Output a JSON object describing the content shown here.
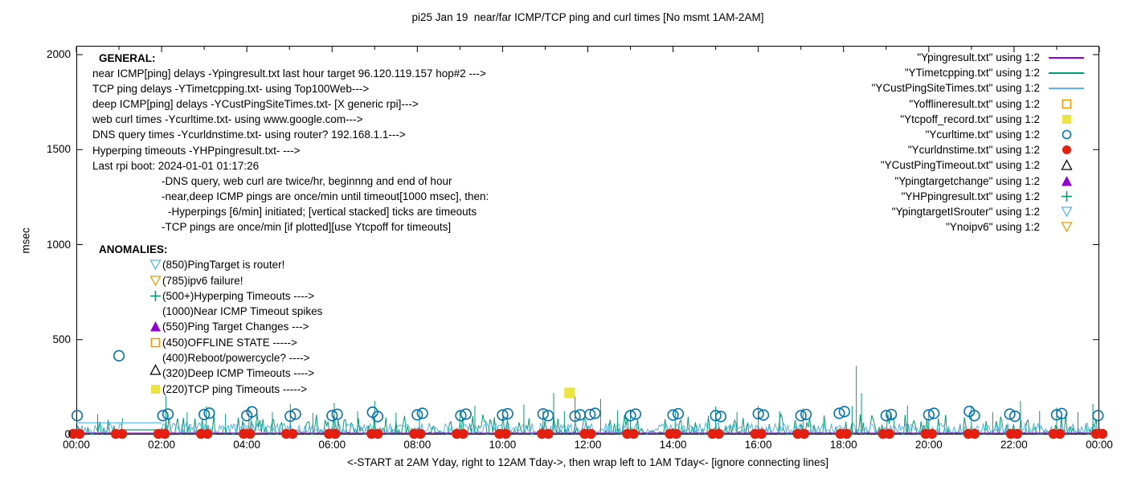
{
  "title": "pi25 Jan 19  near/far ICMP/TCP ping and curl times [No msmt 1AM-2AM]",
  "axes": {
    "y_label": "msec",
    "x_label": "<-START at 2AM Yday, right to 12AM Tday->, then wrap left to 1AM Tday<- [ignore connecting lines]"
  },
  "general": {
    "heading": "GENERAL:",
    "lines": [
      {
        "t": "near ICMP[ping] delays -Ypingresult.txt last hour target 96.120.119.157 hop#2 --->",
        "in": 0
      },
      {
        "t": "TCP ping delays -YTimetcpping.txt- using Top100Web--->",
        "in": 0
      },
      {
        "t": "deep ICMP[ping] delays -YCustPingSiteTimes.txt- [X generic rpi]--->",
        "in": 0
      },
      {
        "t": "web curl times -Ycurltime.txt- using www.google.com--->",
        "in": 0
      },
      {
        "t": "DNS query times -Ycurldnstime.txt- using router? 192.168.1.1--->",
        "in": 0
      },
      {
        "t": "Hyperping timeouts -YHPpingresult.txt- --->",
        "in": 0
      },
      {
        "t": "Last rpi boot: 2024-01-01 01:17:26",
        "in": 0
      },
      {
        "t": "-DNS query, web curl are twice/hr, beginnng and end of hour",
        "in": 1
      },
      {
        "t": "-near,deep ICMP pings are once/min until timeout[1000 msec], then:",
        "in": 1
      },
      {
        "t": "-Hyperpings [6/min] initiated; [vertical stacked] ticks are timeouts",
        "in": 2
      },
      {
        "t": "-TCP pings are once/min [if plotted][use Ytcpoff for timeouts]",
        "in": 1
      }
    ]
  },
  "anomalies": {
    "heading": "ANOMALIES:",
    "items": [
      {
        "marker": "triangle-down-open",
        "color": "#56b4e9",
        "t": "(850)PingTarget is router!"
      },
      {
        "marker": "triangle-down-open",
        "color": "#e69f00",
        "t": "(785)ipv6 failure!"
      },
      {
        "marker": "plus",
        "color": "#009e73",
        "t": "(500+)Hyperping Timeouts ---->"
      },
      {
        "marker": "none",
        "color": "",
        "t": "(1000)Near ICMP Timeout spikes"
      },
      {
        "marker": "triangle-filled",
        "color": "#9400d3",
        "t": "(550)Ping Target Changes --->"
      },
      {
        "marker": "square-open",
        "color": "#e69f00",
        "t": "(450)OFFLINE STATE ----->"
      },
      {
        "marker": "none",
        "color": "",
        "t": "(400)Reboot/powercycle? ---->"
      },
      {
        "marker": "triangle-open",
        "color": "#000000",
        "raised": true,
        "t": "(320)Deep ICMP Timeouts ---->"
      },
      {
        "marker": "square-filled",
        "color": "#ede53f",
        "t": "(220)TCP ping Timeouts ----->"
      }
    ]
  },
  "chart_data": {
    "type": "line",
    "title": "pi25 Jan 19  near/far ICMP/TCP ping and curl times [No msmt 1AM-2AM]",
    "xlabel": "<-START at 2AM Yday, right to 12AM Tday->, then wrap left to 1AM Tday<- [ignore connecting lines]",
    "ylabel": "msec",
    "xlim_hours": [
      0,
      24
    ],
    "ylim": [
      0,
      2045
    ],
    "grid": false,
    "legend_position": "top-right",
    "x_tick_labels": [
      "00:00",
      "02:00",
      "04:00",
      "06:00",
      "08:00",
      "10:00",
      "12:00",
      "14:00",
      "16:00",
      "18:00",
      "20:00",
      "22:00",
      "00:00"
    ],
    "x_tick_hours": [
      0,
      2,
      4,
      6,
      8,
      10,
      12,
      14,
      16,
      18,
      20,
      22,
      24
    ],
    "y_tick_values": [
      0,
      500,
      1000,
      1500,
      2000
    ],
    "measurement_gap_hours": [
      1.1,
      2.0
    ],
    "series": [
      {
        "name": "Ypingresult.txt",
        "legend_label": "\"Ypingresult.txt\" using 1:2",
        "legend_marker": "line",
        "color": "#9400d3",
        "kind": "flat-line",
        "value": 8,
        "note": "near ICMP ping delay, ~constant few msec across full day"
      },
      {
        "name": "YTimetcpping.txt",
        "legend_label": "\"YTimetcpping.txt\" using 1:2",
        "legend_marker": "line",
        "color": "#009e73",
        "kind": "noise",
        "noise_range": [
          0,
          110
        ],
        "seed": 42,
        "flat": {
          "from": 1.15,
          "to": 2.0,
          "value": 25
        },
        "spikes": [
          [
            0.5,
            108
          ],
          [
            2.1,
            205
          ],
          [
            2.6,
            118
          ],
          [
            3.05,
            150
          ],
          [
            3.5,
            110
          ],
          [
            4.05,
            148
          ],
          [
            4.6,
            118
          ],
          [
            5.02,
            162
          ],
          [
            5.55,
            114
          ],
          [
            6.05,
            168
          ],
          [
            6.6,
            124
          ],
          [
            7.0,
            178
          ],
          [
            7.5,
            115
          ],
          [
            8.05,
            134
          ],
          [
            9.0,
            124
          ],
          [
            9.35,
            152
          ],
          [
            10.5,
            158
          ],
          [
            10.95,
            130
          ],
          [
            11.2,
            218
          ],
          [
            11.45,
            124
          ],
          [
            11.7,
            200
          ],
          [
            12.3,
            188
          ],
          [
            12.7,
            128
          ],
          [
            13.0,
            132
          ],
          [
            14.05,
            124
          ],
          [
            15.0,
            148
          ],
          [
            15.5,
            118
          ],
          [
            16.0,
            152
          ],
          [
            16.5,
            124
          ],
          [
            17.05,
            138
          ],
          [
            18.2,
            150
          ],
          [
            18.3,
            362
          ],
          [
            18.42,
            218
          ],
          [
            19.5,
            152
          ],
          [
            20.0,
            124
          ],
          [
            21.0,
            152
          ],
          [
            21.5,
            118
          ],
          [
            22.15,
            178
          ],
          [
            22.6,
            124
          ],
          [
            23.0,
            142
          ],
          [
            23.5,
            118
          ],
          [
            23.85,
            162
          ]
        ]
      },
      {
        "name": "YCustPingSiteTimes.txt",
        "legend_label": "\"YCustPingSiteTimes.txt\" using 1:2",
        "legend_marker": "line",
        "color": "#56b4e9",
        "kind": "noise",
        "noise_range": [
          4,
          62
        ],
        "seed": 7,
        "flat": {
          "from": 0.0,
          "to": 2.0,
          "value": 62
        }
      },
      {
        "name": "Yofflineresult.txt",
        "legend_label": "\"Yofflineresult.txt\" using 1:2",
        "legend_marker": "square-open",
        "color": "#e69f00",
        "kind": "scatter",
        "points": []
      },
      {
        "name": "Ytcpoff_record.txt",
        "legend_label": "\"Ytcpoff_record.txt\" using 1:2",
        "legend_marker": "square-filled",
        "color": "#ede53f",
        "kind": "scatter",
        "points": [
          [
            11.57,
            220
          ]
        ]
      },
      {
        "name": "Ycurltime.txt",
        "legend_label": "\"Ycurltime.txt\" using 1:2",
        "legend_marker": "circle-open",
        "color": "#0072b2",
        "kind": "scatter",
        "points": [
          [
            0.02,
            100
          ],
          [
            1.0,
            415
          ],
          [
            2.03,
            100
          ],
          [
            2.15,
            108
          ],
          [
            3.0,
            106
          ],
          [
            3.12,
            113
          ],
          [
            4.0,
            100
          ],
          [
            4.12,
            120
          ],
          [
            5.02,
            97
          ],
          [
            5.14,
            108
          ],
          [
            6.0,
            100
          ],
          [
            6.12,
            107
          ],
          [
            6.95,
            118
          ],
          [
            7.07,
            95
          ],
          [
            8.0,
            104
          ],
          [
            8.12,
            112
          ],
          [
            9.02,
            100
          ],
          [
            9.14,
            108
          ],
          [
            10.0,
            103
          ],
          [
            10.12,
            110
          ],
          [
            10.95,
            109
          ],
          [
            11.07,
            100
          ],
          [
            11.7,
            97
          ],
          [
            11.82,
            104
          ],
          [
            12.05,
            106
          ],
          [
            12.17,
            112
          ],
          [
            13.0,
            100
          ],
          [
            13.12,
            108
          ],
          [
            14.0,
            103
          ],
          [
            14.12,
            110
          ],
          [
            15.0,
            100
          ],
          [
            15.12,
            95
          ],
          [
            16.0,
            110
          ],
          [
            16.12,
            103
          ],
          [
            17.0,
            100
          ],
          [
            17.12,
            106
          ],
          [
            17.9,
            112
          ],
          [
            18.02,
            121
          ],
          [
            19.0,
            100
          ],
          [
            19.12,
            106
          ],
          [
            20.0,
            104
          ],
          [
            20.12,
            112
          ],
          [
            20.95,
            122
          ],
          [
            21.07,
            100
          ],
          [
            21.9,
            108
          ],
          [
            22.02,
            97
          ],
          [
            23.0,
            104
          ],
          [
            23.12,
            111
          ],
          [
            23.97,
            100
          ]
        ]
      },
      {
        "name": "Ycurldnstime.txt",
        "legend_label": "\"Ycurldnstime.txt\" using 1:2",
        "legend_marker": "circle-filled",
        "color": "#e51e10",
        "kind": "paired-dots",
        "hours": [
          0,
          1,
          2,
          3,
          4,
          5,
          6,
          7,
          8,
          9,
          10,
          11,
          12,
          13,
          14,
          15,
          16,
          17,
          18,
          19,
          20,
          21,
          22,
          23,
          24
        ],
        "value": 4,
        "note": "DNS query times, twice/hr at begin+end of hour, plotted near 0"
      },
      {
        "name": "YCustPingTimeout.txt",
        "legend_label": "\"YCustPingTimeout.txt\" using 1:2",
        "legend_marker": "triangle-open",
        "color": "#000000",
        "kind": "scatter",
        "points": []
      },
      {
        "name": "Ypingtargetchange",
        "legend_label": "\"Ypingtargetchange\" using 1:2",
        "legend_marker": "triangle-filled",
        "color": "#9400d3",
        "kind": "scatter",
        "points": []
      },
      {
        "name": "YHPpingresult.txt",
        "legend_label": "\"YHPpingresult.txt\" using 1:2",
        "legend_marker": "plus",
        "color": "#009e73",
        "kind": "scatter",
        "points": []
      },
      {
        "name": "YpingtargetISrouter",
        "legend_label": "\"YpingtargetISrouter\" using 1:2",
        "legend_marker": "triangle-down-open",
        "color": "#56b4e9",
        "kind": "scatter",
        "points": []
      },
      {
        "name": "Ynoipv6",
        "legend_label": "\"Ynoipv6\" using 1:2",
        "legend_marker": "triangle-down-open",
        "color": "#e69f00",
        "kind": "scatter",
        "points": []
      }
    ]
  }
}
